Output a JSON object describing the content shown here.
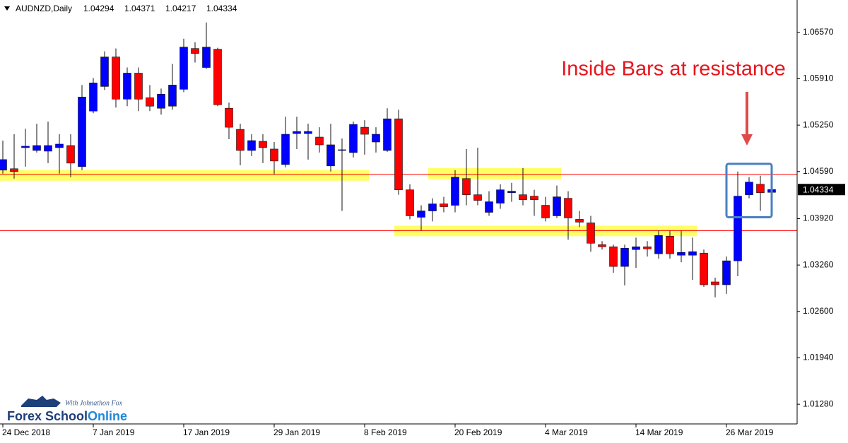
{
  "chart_data": {
    "type": "candlestick",
    "title": "AUDNZD,Daily",
    "annotation": "Inside Bars at resistance",
    "categories": [
      "24 Dec 2018",
      null,
      null,
      null,
      null,
      null,
      null,
      null,
      "7 Jan 2019",
      null,
      null,
      null,
      null,
      null,
      null,
      null,
      "17 Jan 2019",
      null,
      null,
      null,
      null,
      null,
      null,
      null,
      "29 Jan 2019",
      null,
      null,
      null,
      null,
      null,
      null,
      null,
      "8 Feb 2019",
      null,
      null,
      null,
      null,
      null,
      null,
      null,
      "20 Feb 2019",
      null,
      null,
      null,
      null,
      null,
      null,
      null,
      "4 Mar 2019",
      null,
      null,
      null,
      null,
      null,
      null,
      null,
      "14 Mar 2019",
      null,
      null,
      null,
      null,
      null,
      null,
      null,
      "26 Mar 2019",
      null,
      null,
      null,
      null
    ],
    "open": [
      1.0461,
      1.0463,
      1.0493,
      1.0489,
      1.0488,
      1.0493,
      1.0496,
      1.0466,
      1.0545,
      1.058,
      1.0622,
      1.0562,
      1.0599,
      1.0564,
      1.0549,
      1.0552,
      1.0576,
      1.0634,
      1.0607,
      1.0633,
      1.0549,
      1.0519,
      1.0489,
      1.0502,
      1.0491,
      1.0469,
      1.0513,
      1.0513,
      1.0508,
      1.0467,
      1.0489,
      1.0486,
      1.0522,
      1.0501,
      1.0489,
      1.0534,
      1.0433,
      1.0394,
      1.0403,
      1.0413,
      1.0411,
      1.0449,
      1.0426,
      1.0401,
      1.0414,
      1.0429,
      1.0426,
      1.0424,
      1.0411,
      1.0396,
      1.0421,
      1.0391,
      1.0386,
      1.0355,
      1.0352,
      1.0324,
      1.0348,
      1.0352,
      1.0342,
      1.0367,
      1.034,
      1.034,
      1.0343,
      1.0302,
      1.0298,
      1.0332,
      1.0426,
      1.0441,
      1.04294
    ],
    "high": [
      1.0503,
      1.0512,
      1.052,
      1.0527,
      1.053,
      1.0512,
      1.0512,
      1.0582,
      1.0592,
      1.063,
      1.0634,
      1.0607,
      1.0607,
      1.0582,
      1.0577,
      1.0612,
      1.0648,
      1.0643,
      1.0671,
      1.0635,
      1.0557,
      1.0527,
      1.0512,
      1.0512,
      1.0501,
      1.0537,
      1.0537,
      1.0527,
      1.0522,
      1.0527,
      1.0506,
      1.053,
      1.0532,
      1.0522,
      1.0549,
      1.0547,
      1.0441,
      1.0411,
      1.0421,
      1.0423,
      1.0461,
      1.0491,
      1.0493,
      1.0431,
      1.0441,
      1.0443,
      1.0464,
      1.0433,
      1.0423,
      1.0439,
      1.0431,
      1.0403,
      1.0396,
      1.036,
      1.0355,
      1.0355,
      1.0365,
      1.036,
      1.0375,
      1.0375,
      1.0375,
      1.0365,
      1.0348,
      1.0308,
      1.0338,
      1.0459,
      1.0451,
      1.0453,
      1.04371
    ],
    "low": [
      1.0456,
      1.0449,
      1.0466,
      1.0486,
      1.0471,
      1.0456,
      1.0451,
      1.0461,
      1.0542,
      1.0575,
      1.055,
      1.0552,
      1.0545,
      1.0545,
      1.054,
      1.0547,
      1.0572,
      1.0614,
      1.0605,
      1.0552,
      1.0505,
      1.0468,
      1.0481,
      1.0471,
      1.0455,
      1.0465,
      1.0491,
      1.0476,
      1.0486,
      1.0459,
      1.0403,
      1.0479,
      1.0483,
      1.0486,
      1.0487,
      1.0426,
      1.0391,
      1.0375,
      1.0388,
      1.0401,
      1.0401,
      1.0411,
      1.0411,
      1.0396,
      1.0406,
      1.0416,
      1.0411,
      1.0396,
      1.0388,
      1.0393,
      1.0362,
      1.038,
      1.0345,
      1.0348,
      1.0315,
      1.0297,
      1.0322,
      1.0338,
      1.0335,
      1.0335,
      1.033,
      1.0305,
      1.0295,
      1.028,
      1.0285,
      1.031,
      1.0421,
      1.0403,
      1.04217
    ],
    "close": [
      1.0476,
      1.0459,
      1.0495,
      1.0496,
      1.0496,
      1.0498,
      1.0471,
      1.0565,
      1.0585,
      1.0622,
      1.0562,
      1.0599,
      1.0562,
      1.0552,
      1.0569,
      1.0582,
      1.0636,
      1.0627,
      1.0636,
      1.0554,
      1.0522,
      1.0489,
      1.0503,
      1.0493,
      1.0474,
      1.0512,
      1.0516,
      1.0516,
      1.0497,
      1.0497,
      1.049,
      1.0526,
      1.0512,
      1.0512,
      1.0534,
      1.0433,
      1.0396,
      1.0403,
      1.0413,
      1.0409,
      1.0451,
      1.0426,
      1.0418,
      1.0416,
      1.0433,
      1.0431,
      1.0419,
      1.0419,
      1.0393,
      1.0423,
      1.0393,
      1.0387,
      1.0357,
      1.0352,
      1.0324,
      1.035,
      1.0352,
      1.0349,
      1.0368,
      1.0342,
      1.0344,
      1.0345,
      1.0298,
      1.0298,
      1.0332,
      1.0424,
      1.0444,
      1.0429,
      1.04334
    ],
    "up_color": "#0000ff",
    "down_color": "#ff0000",
    "ylim": [
      1.01,
      1.0703
    ],
    "yticks": [
      {
        "value": 1.0657,
        "label": "1.06570"
      },
      {
        "value": 1.0591,
        "label": "1.05910"
      },
      {
        "value": 1.0525,
        "label": "1.05250"
      },
      {
        "value": 1.0459,
        "label": "1.04590"
      },
      {
        "value": 1.0392,
        "label": "1.03920"
      },
      {
        "value": 1.0326,
        "label": "1.03260"
      },
      {
        "value": 1.026,
        "label": "1.02600"
      },
      {
        "value": 1.0194,
        "label": "1.01940"
      },
      {
        "value": 1.0128,
        "label": "1.01280"
      }
    ],
    "levels": [
      1.0455,
      1.0375
    ],
    "level_color": "#ff0000",
    "zones": [
      {
        "from": 0,
        "to": 32,
        "y": [
          1.0461,
          1.0446
        ]
      },
      {
        "from": 38,
        "to": 49,
        "y": [
          1.0464,
          1.0448
        ]
      },
      {
        "from": 35,
        "to": 61,
        "y": [
          1.0382,
          1.0367
        ]
      }
    ],
    "zone_color": "#ffff66",
    "highlight": {
      "from": 65,
      "to": 67,
      "y": [
        1.047,
        1.0394
      ]
    },
    "highlight_color": "#4a7fc1"
  },
  "logo": {
    "brand": "Forex School",
    "brand_accent": "Online",
    "tagline": "With Johnathon Fox"
  }
}
